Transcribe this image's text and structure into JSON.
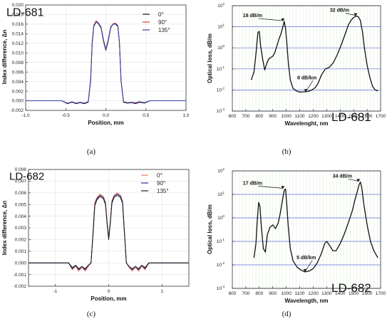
{
  "chart_data": [
    {
      "type": "line",
      "panel_label": "(a)",
      "title": "LD-681",
      "xlabel": "Position, mm",
      "ylabel": "Index difference, Δn",
      "xlim": [
        -1.0,
        1.0
      ],
      "ylim": [
        -0.002,
        0.02
      ],
      "xticks": [
        "-1.0",
        "-0.5",
        "0.0",
        "0.5",
        "1.0"
      ],
      "yticks": [
        "-0.002",
        "0.000",
        "0.002",
        "0.004",
        "0.006",
        "0.008",
        "0.010",
        "0.012",
        "0.014",
        "0.016",
        "0.018",
        "0.020"
      ],
      "grid": true,
      "legend_position": "top-right",
      "series": [
        {
          "name": "0°",
          "color": "#1a1a1a",
          "x": [
            -1.0,
            -0.55,
            -0.48,
            -0.42,
            -0.37,
            -0.32,
            -0.27,
            -0.22,
            -0.19,
            -0.17,
            -0.15,
            -0.12,
            -0.09,
            -0.06,
            -0.03,
            0.0,
            0.03,
            0.06,
            0.09,
            0.12,
            0.15,
            0.17,
            0.19,
            0.22,
            0.27,
            0.32,
            0.37,
            0.42,
            0.48,
            0.55,
            1.0
          ],
          "y": [
            0.0,
            0.0,
            -0.0006,
            -0.0003,
            -0.0006,
            -0.0004,
            -0.0006,
            -0.0003,
            0.004,
            0.012,
            0.0155,
            0.0165,
            0.016,
            0.0152,
            0.0125,
            0.0105,
            0.0125,
            0.0152,
            0.016,
            0.016,
            0.0155,
            0.012,
            0.004,
            -0.0003,
            -0.0005,
            -0.0004,
            -0.0006,
            -0.0003,
            -0.0005,
            0.0,
            0.0
          ]
        },
        {
          "name": "90°",
          "color": "#d9392b",
          "x": [
            -1.0,
            -0.55,
            -0.48,
            -0.42,
            -0.37,
            -0.32,
            -0.27,
            -0.22,
            -0.19,
            -0.17,
            -0.15,
            -0.12,
            -0.09,
            -0.06,
            -0.03,
            0.0,
            0.03,
            0.06,
            0.09,
            0.12,
            0.15,
            0.17,
            0.19,
            0.22,
            0.27,
            0.32,
            0.37,
            0.42,
            0.48,
            0.55,
            1.0
          ],
          "y": [
            0.0,
            0.0,
            -0.0005,
            -0.0003,
            -0.0005,
            -0.0003,
            -0.0005,
            -0.0002,
            0.0045,
            0.0125,
            0.0158,
            0.0167,
            0.0162,
            0.0154,
            0.0128,
            0.0108,
            0.0128,
            0.0154,
            0.0161,
            0.0162,
            0.0157,
            0.0122,
            0.0042,
            -0.0002,
            -0.0004,
            -0.0003,
            -0.0005,
            -0.0002,
            -0.0004,
            0.0,
            0.0
          ]
        },
        {
          "name": "135°",
          "color": "#3340b0",
          "x": [
            -1.0,
            -0.55,
            -0.48,
            -0.42,
            -0.37,
            -0.32,
            -0.27,
            -0.22,
            -0.19,
            -0.17,
            -0.15,
            -0.12,
            -0.09,
            -0.06,
            -0.03,
            0.0,
            0.03,
            0.06,
            0.09,
            0.12,
            0.15,
            0.17,
            0.19,
            0.22,
            0.27,
            0.32,
            0.37,
            0.42,
            0.48,
            0.55,
            1.0
          ],
          "y": [
            0.0,
            0.0,
            -0.0005,
            -0.0002,
            -0.0005,
            -0.0003,
            -0.0005,
            -0.0002,
            0.0042,
            0.0122,
            0.0156,
            0.0165,
            0.0161,
            0.0153,
            0.0127,
            0.0106,
            0.0127,
            0.0153,
            0.016,
            0.0161,
            0.0156,
            0.0121,
            0.0041,
            -0.0002,
            -0.0004,
            -0.0003,
            -0.0004,
            -0.0002,
            -0.0004,
            0.0,
            0.0
          ]
        }
      ]
    },
    {
      "type": "line",
      "panel_label": "(b)",
      "title": "LD-681",
      "xlabel": "Wavelenght, nm",
      "ylabel": "Optical loss, dB/m",
      "xlim": [
        600,
        1700
      ],
      "ylim_log10": [
        -3,
        2
      ],
      "log_y": true,
      "xticks": [
        "600",
        "700",
        "800",
        "900",
        "1000",
        "1100",
        "1200",
        "1300",
        "1400",
        "1500",
        "1600",
        "1700"
      ],
      "ytick_exponents": [
        "-3",
        "-2",
        "-1",
        "0",
        "1",
        "2"
      ],
      "grid": true,
      "annotations": [
        "18 dB/m",
        "32 dB/m",
        "8 dB/km"
      ],
      "annotation_points": [
        {
          "x": 985,
          "y": 18
        },
        {
          "x": 1525,
          "y": 32
        },
        {
          "x": 1145,
          "y": 0.008
        }
      ],
      "series": [
        {
          "name": "",
          "color": "#111111",
          "x": [
            740,
            760,
            775,
            790,
            800,
            810,
            825,
            840,
            855,
            870,
            885,
            900,
            915,
            930,
            945,
            960,
            975,
            985,
            995,
            1005,
            1015,
            1030,
            1050,
            1075,
            1100,
            1130,
            1160,
            1190,
            1215,
            1235,
            1260,
            1290,
            1320,
            1350,
            1380,
            1410,
            1440,
            1460,
            1480,
            1500,
            1520,
            1535,
            1550,
            1565,
            1580,
            1600,
            1620,
            1640,
            1660,
            1680
          ],
          "y": [
            0.03,
            0.07,
            0.5,
            5.5,
            6.0,
            1.2,
            0.3,
            0.09,
            0.18,
            0.3,
            0.35,
            0.4,
            0.6,
            1.2,
            2.5,
            4.5,
            10,
            18,
            8,
            1.5,
            0.2,
            0.03,
            0.012,
            0.009,
            0.008,
            0.0082,
            0.0085,
            0.01,
            0.013,
            0.02,
            0.05,
            0.1,
            0.12,
            0.2,
            0.5,
            1.5,
            5,
            12,
            20,
            28,
            32,
            30,
            20,
            6,
            1,
            0.15,
            0.04,
            0.015,
            0.01,
            0.009
          ]
        }
      ]
    },
    {
      "type": "line",
      "panel_label": "(c)",
      "title": "LD-682",
      "xlabel": "Position, mm",
      "ylabel": "Index difference, Δn",
      "xlim": [
        -1.5,
        1.5
      ],
      "ylim": [
        -0.002,
        0.008
      ],
      "xticks": [
        "-1",
        "0",
        "1"
      ],
      "yticks": [
        "-0.002",
        "-0.001",
        "0.000",
        "0.001",
        "0.002",
        "0.003",
        "0.004",
        "0.005",
        "0.006",
        "0.007",
        "0.008"
      ],
      "grid": true,
      "legend_position": "top-right",
      "series": [
        {
          "name": "0°",
          "color": "#f07a5a",
          "x": [
            -1.5,
            -0.75,
            -0.68,
            -0.62,
            -0.56,
            -0.5,
            -0.44,
            -0.38,
            -0.33,
            -0.29,
            -0.26,
            -0.22,
            -0.16,
            -0.1,
            -0.06,
            -0.03,
            0.0,
            0.03,
            0.06,
            0.1,
            0.16,
            0.22,
            0.26,
            0.29,
            0.33,
            0.38,
            0.44,
            0.5,
            0.56,
            0.62,
            0.68,
            0.75,
            1.5
          ],
          "y": [
            0.0,
            0.0,
            -0.0006,
            -0.0003,
            -0.0007,
            -0.0004,
            -0.0007,
            -0.0003,
            0.0,
            0.003,
            0.0052,
            0.0056,
            0.0059,
            0.0057,
            0.0052,
            0.0035,
            0.0022,
            0.0036,
            0.0053,
            0.0058,
            0.006,
            0.0058,
            0.0053,
            0.003,
            0.0,
            -0.0004,
            -0.0007,
            -0.0004,
            -0.0007,
            -0.0003,
            -0.0006,
            0.0,
            0.0
          ]
        },
        {
          "name": "90°",
          "color": "#2a2a9a",
          "x": [
            -1.5,
            -0.75,
            -0.68,
            -0.62,
            -0.56,
            -0.5,
            -0.44,
            -0.38,
            -0.33,
            -0.29,
            -0.26,
            -0.22,
            -0.16,
            -0.1,
            -0.06,
            -0.03,
            0.0,
            0.03,
            0.06,
            0.1,
            0.16,
            0.22,
            0.26,
            0.29,
            0.33,
            0.38,
            0.44,
            0.5,
            0.56,
            0.62,
            0.68,
            0.75,
            1.5
          ],
          "y": [
            0.0,
            0.0,
            -0.0005,
            -0.0002,
            -0.0006,
            -0.0003,
            -0.0006,
            -0.0002,
            0.0,
            0.0028,
            0.005,
            0.0055,
            0.0058,
            0.0056,
            0.0051,
            0.0034,
            0.0021,
            0.0035,
            0.0052,
            0.0057,
            0.0059,
            0.0057,
            0.0052,
            0.0029,
            0.0,
            -0.0003,
            -0.0006,
            -0.0003,
            -0.0006,
            -0.0002,
            -0.0005,
            0.0,
            0.0
          ]
        },
        {
          "name": "135°",
          "color": "#1a1a1a",
          "x": [
            -1.5,
            -0.75,
            -0.68,
            -0.62,
            -0.56,
            -0.5,
            -0.44,
            -0.38,
            -0.33,
            -0.29,
            -0.26,
            -0.22,
            -0.16,
            -0.1,
            -0.06,
            -0.03,
            0.0,
            0.03,
            0.06,
            0.1,
            0.16,
            0.22,
            0.26,
            0.29,
            0.33,
            0.38,
            0.44,
            0.5,
            0.56,
            0.62,
            0.68,
            0.75,
            1.5
          ],
          "y": [
            0.0,
            0.0,
            -0.0004,
            -0.0002,
            -0.0005,
            -0.0003,
            -0.0005,
            -0.0002,
            0.0,
            0.0027,
            0.0049,
            0.0054,
            0.0057,
            0.0055,
            0.005,
            0.0033,
            0.002,
            0.0034,
            0.0051,
            0.0056,
            0.0058,
            0.0056,
            0.0051,
            0.0028,
            0.0,
            -0.0003,
            -0.0005,
            -0.0003,
            -0.0005,
            -0.0002,
            -0.0004,
            0.0,
            0.0
          ]
        }
      ]
    },
    {
      "type": "line",
      "panel_label": "(d)",
      "title": "LD-682",
      "xlabel": "Wavelength, nm",
      "ylabel": "Optical loss, dB/m",
      "xlim": [
        600,
        1700
      ],
      "ylim_log10": [
        -3,
        2
      ],
      "log_y": true,
      "xticks": [
        "600",
        "700",
        "800",
        "900",
        "1000",
        "1100",
        "1200",
        "1300",
        "1400",
        "1500",
        "1600",
        "1700"
      ],
      "ytick_exponents": [
        "-3",
        "-2",
        "-1",
        "0",
        "1",
        "2"
      ],
      "grid": true,
      "annotations": [
        "17 dB/m",
        "34 dB/m",
        "5 dB/km"
      ],
      "annotation_points": [
        {
          "x": 985,
          "y": 17
        },
        {
          "x": 1545,
          "y": 34
        },
        {
          "x": 1140,
          "y": 0.005
        }
      ],
      "series": [
        {
          "name": "",
          "color": "#111111",
          "x": [
            760,
            775,
            785,
            795,
            805,
            815,
            830,
            845,
            860,
            880,
            900,
            920,
            940,
            955,
            970,
            985,
            995,
            1005,
            1015,
            1030,
            1050,
            1080,
            1110,
            1140,
            1170,
            1200,
            1230,
            1260,
            1285,
            1300,
            1320,
            1345,
            1370,
            1400,
            1430,
            1460,
            1490,
            1510,
            1525,
            1540,
            1550,
            1560,
            1575,
            1600,
            1625,
            1650,
            1680
          ],
          "y": [
            0.02,
            0.08,
            0.8,
            4.5,
            3.0,
            0.4,
            0.05,
            0.035,
            0.2,
            0.4,
            0.5,
            0.35,
            0.6,
            1.5,
            5,
            15,
            17,
            3,
            0.4,
            0.05,
            0.015,
            0.008,
            0.006,
            0.005,
            0.0055,
            0.007,
            0.012,
            0.03,
            0.08,
            0.1,
            0.07,
            0.04,
            0.04,
            0.08,
            0.2,
            0.6,
            2,
            6,
            12,
            25,
            34,
            20,
            4,
            0.5,
            0.1,
            0.04,
            0.02
          ]
        }
      ]
    }
  ]
}
